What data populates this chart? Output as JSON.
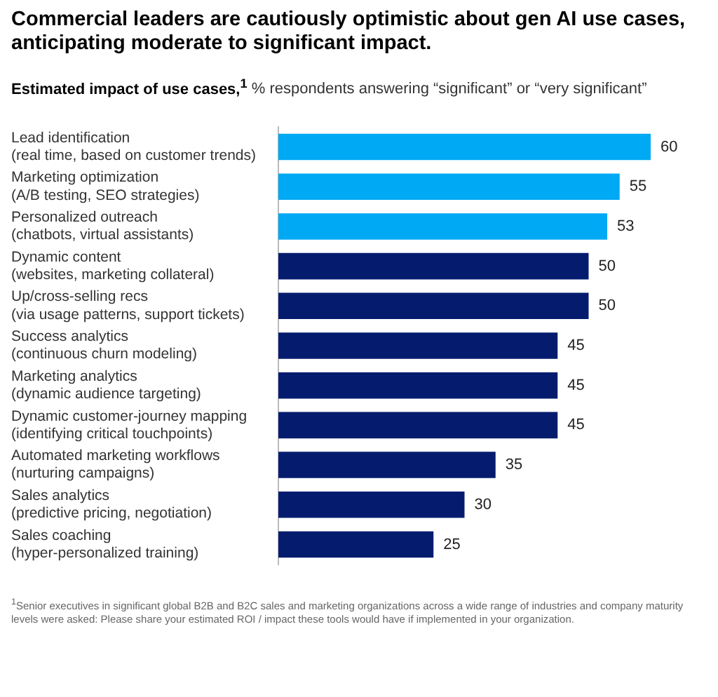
{
  "chart_data": {
    "type": "bar",
    "orientation": "horizontal",
    "title": "Commercial leaders are cautiously optimistic about gen AI use cases, anticipating moderate to significant impact.",
    "subtitle": "Estimated impact of use cases,$^{1}$ % respondents answering “significant” or “very significant”",
    "categories": [
      "Lead identification\n(real time, based on customer trends)",
      "Marketing optimization\n(A/B testing, SEO strategies)",
      "Personalized outreach\n(chatbots, virtual assistants)",
      "Dynamic content\n(websites, marketing collateral)",
      "Up/cross-selling recs\n(via usage patterns, support tickets)",
      "Success analytics\n(continuous churn modeling)",
      "Marketing analytics\n(dynamic audience targeting)",
      "Dynamic customer-journey mapping\n(identifying critical touchpoints)",
      "Automated marketing workflows\n(nurturing campaigns)",
      "Sales analytics\n(predictive pricing, negotiation)",
      "Sales coaching\n(hyper-personalized training)"
    ],
    "values": [
      60,
      55,
      53,
      50,
      50,
      45,
      45,
      45,
      35,
      30,
      25
    ],
    "colors": [
      "#00a9f4",
      "#00a9f4",
      "#00a9f4",
      "#051c6e",
      "#051c6e",
      "#051c6e",
      "#051c6e",
      "#051c6e",
      "#051c6e",
      "#051c6e",
      "#051c6e"
    ],
    "data_labels": true,
    "tick_labels": "y",
    "annotations": [
      "$^{1}$Senior executives in significant global B2B and B2C sales and marketing organizations across a wide range of industries and company maturity levels were asked: Please share your estimated ROI / impact these tools would have if implemented in your organization."
    ]
  }
}
